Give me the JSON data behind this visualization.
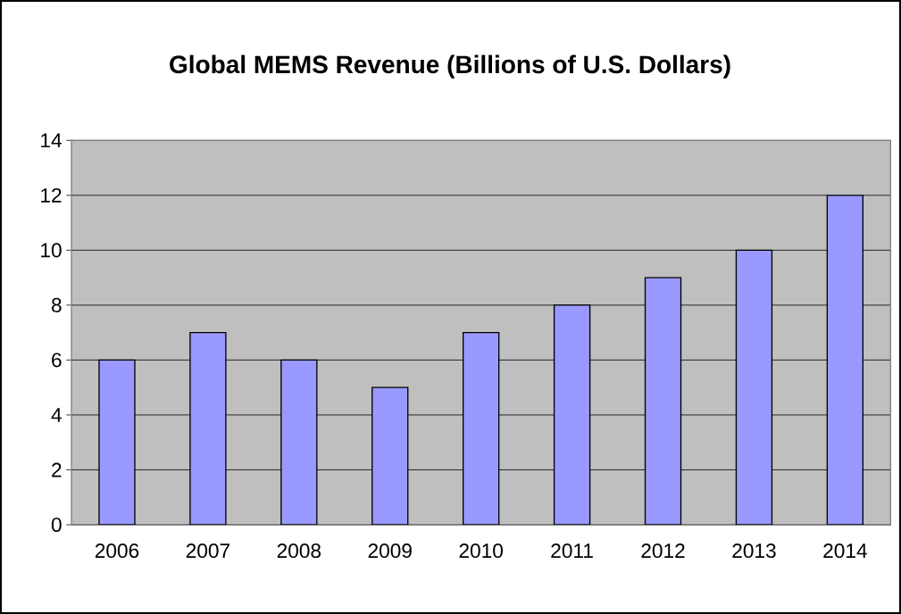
{
  "chart_data": {
    "type": "bar",
    "title": "Global MEMS Revenue (Billions of U.S. Dollars)",
    "categories": [
      "2006",
      "2007",
      "2008",
      "2009",
      "2010",
      "2011",
      "2012",
      "2013",
      "2014"
    ],
    "values": [
      6,
      7,
      6,
      5,
      7,
      8,
      9,
      10,
      12
    ],
    "color": "#9999ff",
    "ylim": [
      0,
      14
    ],
    "yticks": [
      0,
      2,
      4,
      6,
      8,
      10,
      12,
      14
    ],
    "grid": "y"
  }
}
